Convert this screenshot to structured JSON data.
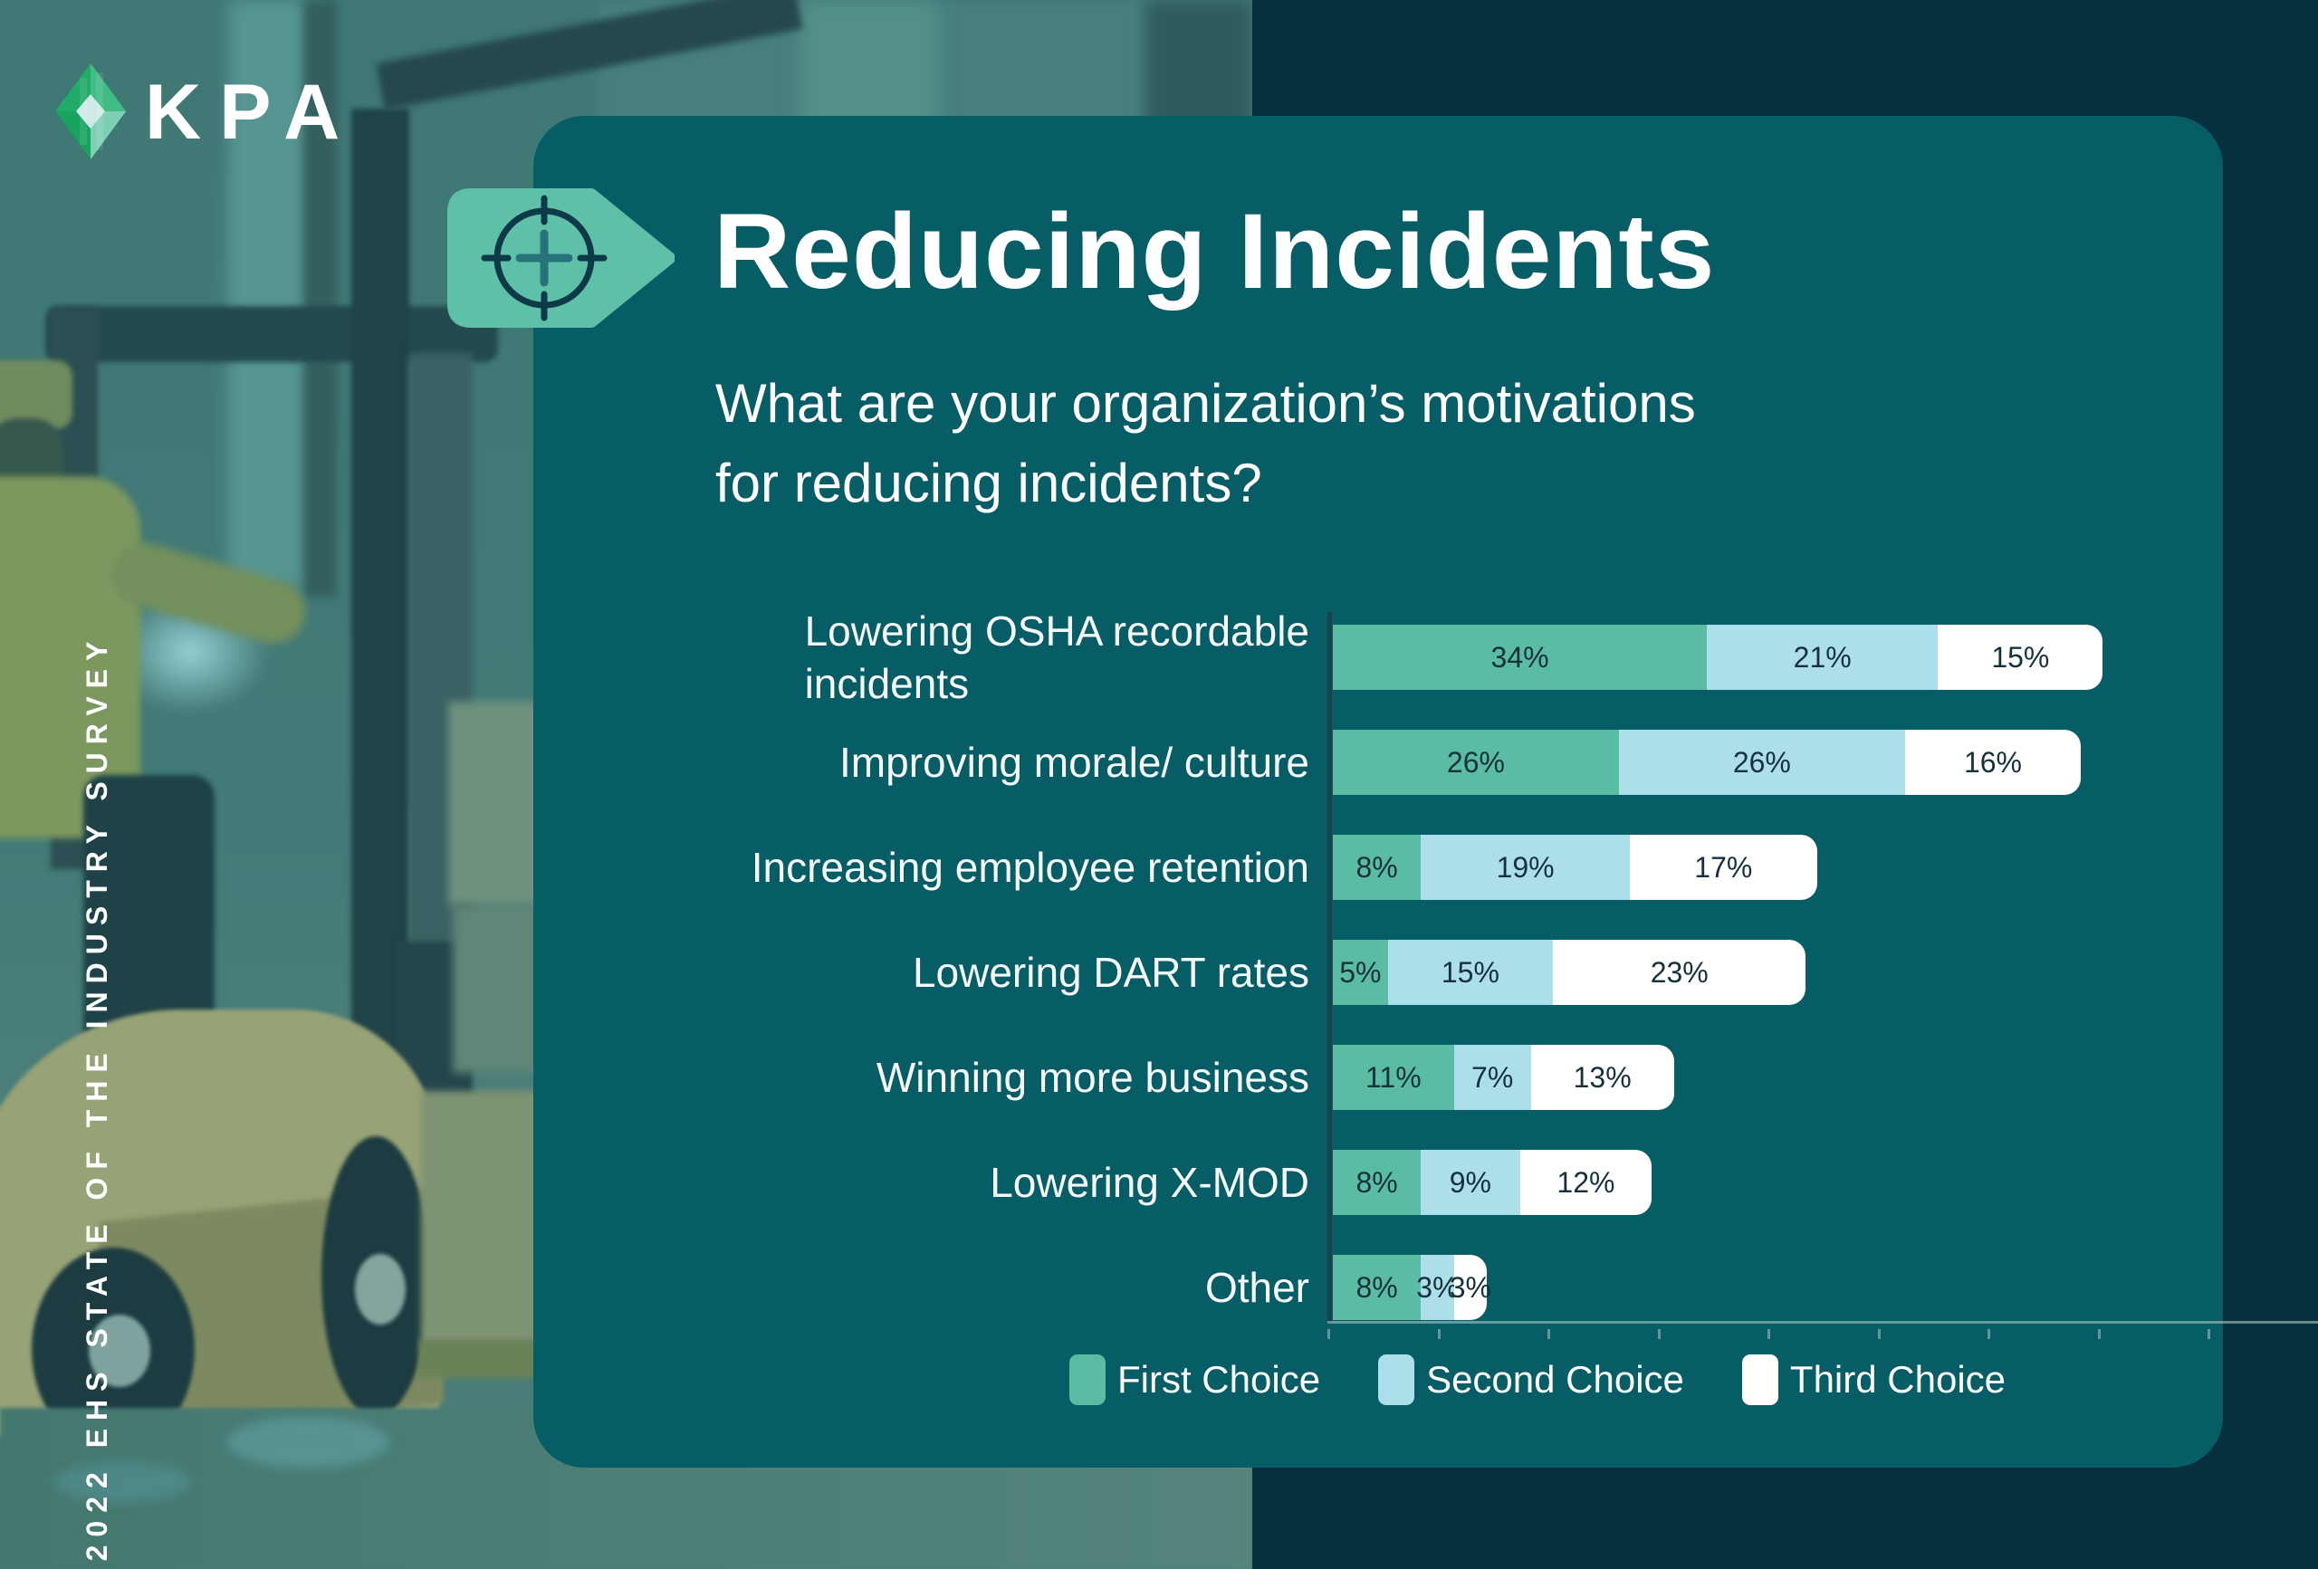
{
  "brand": {
    "wordmark": "KPA"
  },
  "side_label": "2022 EHS STATE OF THE INDUSTRY SURVEY",
  "header": {
    "badge_icon": "target-icon",
    "title": "Reducing Incidents",
    "subtitle_line1": "What are your organization’s motivations",
    "subtitle_line2": "for reducing incidents?"
  },
  "chart_data": {
    "type": "bar",
    "orientation": "horizontal",
    "stacked": true,
    "title": "What are your organization’s motivations for reducing incidents?",
    "categories": [
      "Lowering OSHA recordable\nincidents",
      "Improving morale/ culture",
      "Increasing employee retention",
      "Lowering DART rates",
      "Winning more business",
      "Lowering X-MOD",
      "Other"
    ],
    "series": [
      {
        "name": "First Choice",
        "color": "#5abca3",
        "values": [
          34,
          26,
          8,
          5,
          11,
          8,
          8
        ]
      },
      {
        "name": "Second Choice",
        "color": "#addfeb",
        "values": [
          21,
          26,
          19,
          15,
          7,
          9,
          3
        ]
      },
      {
        "name": "Third Choice",
        "color": "#ffffff",
        "values": [
          15,
          16,
          17,
          23,
          13,
          12,
          3
        ]
      }
    ],
    "value_suffix": "%",
    "axis": {
      "min_percent": 0,
      "max_percent": 90,
      "tick_interval_percent": 10,
      "gridlines": false,
      "baseline": true
    },
    "legend_position": "bottom"
  },
  "colors": {
    "card": "#075d65",
    "background_right": "#07303e",
    "photo_tint": "#417977",
    "bar_first": "#5abca3",
    "bar_second": "#addfeb",
    "bar_third": "#ffffff",
    "value_text": "#15323c",
    "text": "#ffffff",
    "badge": "#5fc0a8",
    "crosshair": "#0d3a48",
    "crosshair_plus": "#26747a",
    "axis_line": "#19424b"
  }
}
